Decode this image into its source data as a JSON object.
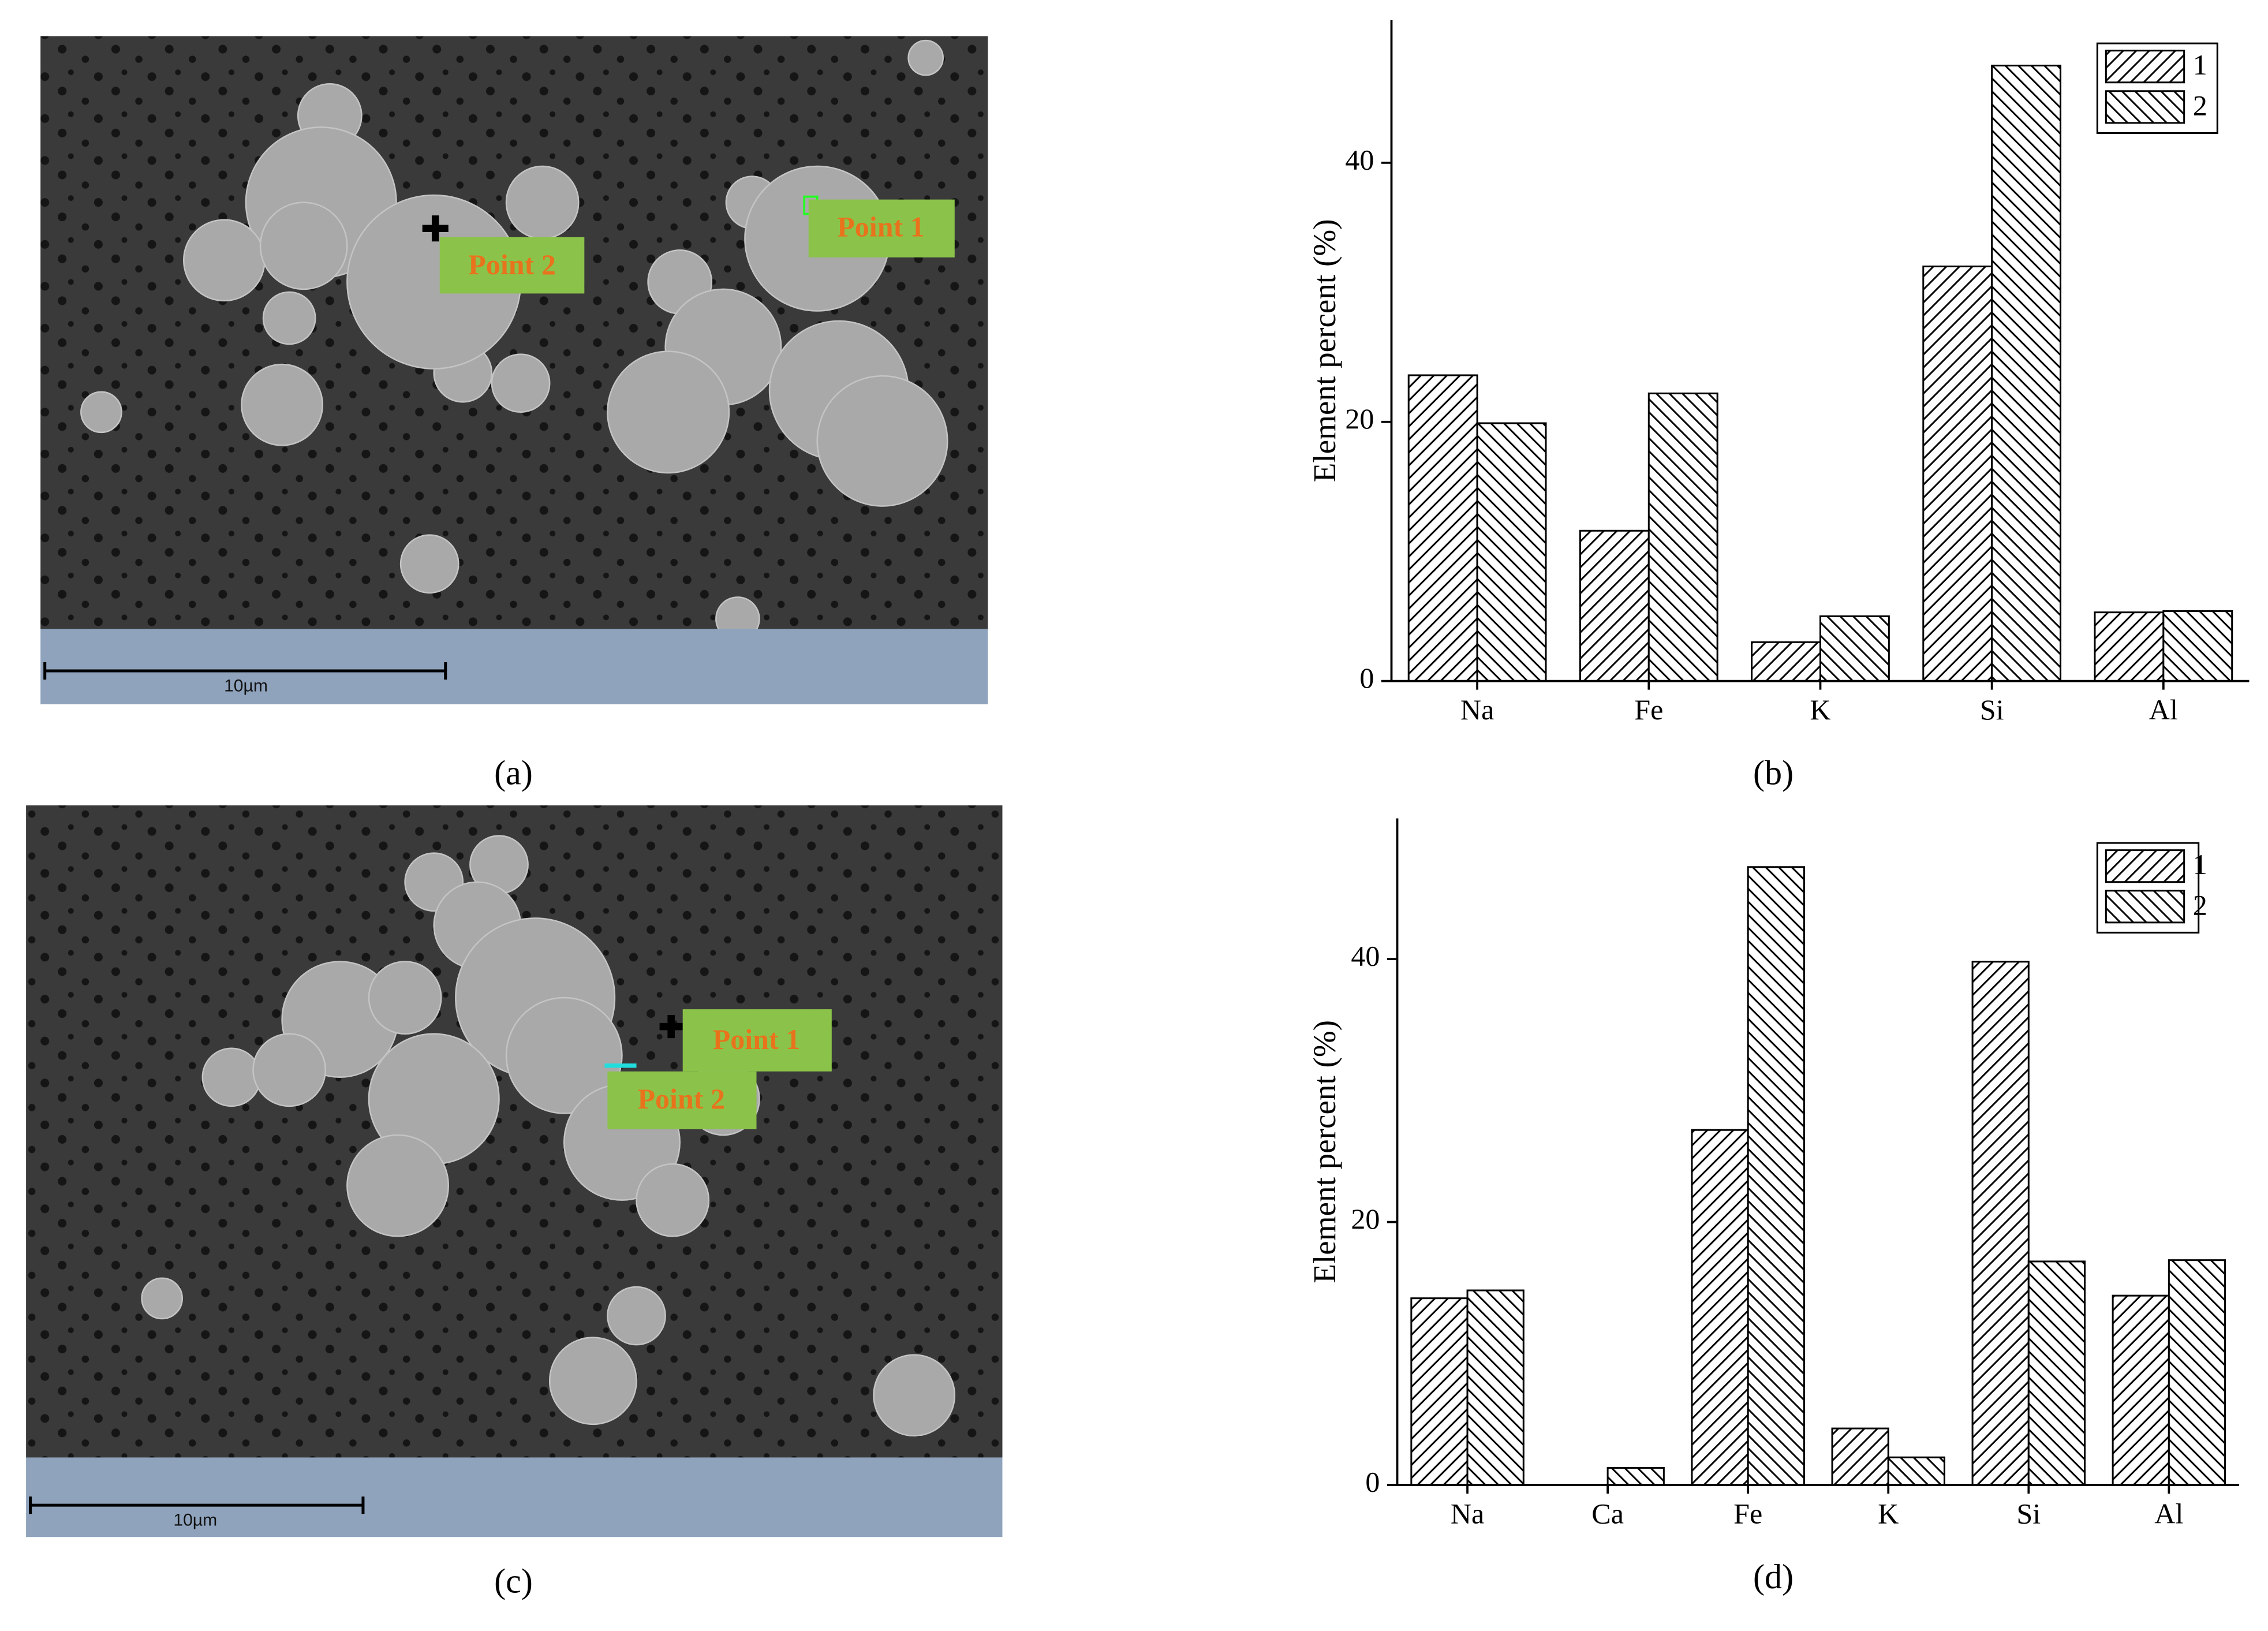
{
  "images": [
    {
      "label": "(a)",
      "points": [
        "Point 1",
        "Point 2"
      ],
      "scale_bar": "10µm"
    },
    {
      "label": "(c)",
      "points": [
        "Point 1",
        "Point 2"
      ],
      "scale_bar": "10µm"
    }
  ],
  "chart_data": [
    {
      "type": "bar",
      "panel_label": "(b)",
      "ylabel": "Element percent (%)",
      "categories": [
        "Na",
        "Fe",
        "K",
        "Si",
        "Al"
      ],
      "series": [
        {
          "name": "1",
          "color": "#000000",
          "hatch": "/",
          "values": [
            23.6,
            11.6,
            3.0,
            32.0,
            5.3
          ]
        },
        {
          "name": "2",
          "color": "#000000",
          "hatch": "\\",
          "values": [
            19.9,
            22.2,
            5.0,
            47.5,
            5.4
          ]
        }
      ],
      "ylim": [
        0,
        51
      ],
      "yticks": [
        0,
        20,
        40
      ],
      "legend": "upper right"
    },
    {
      "type": "bar",
      "panel_label": "(d)",
      "ylabel": "Element percent (%)",
      "categories": [
        "Na",
        "Ca",
        "Fe",
        "K",
        "Si",
        "Al"
      ],
      "series": [
        {
          "name": "1",
          "color": "#000000",
          "hatch": "/",
          "values": [
            14.2,
            0,
            27.0,
            4.3,
            39.8,
            14.4
          ]
        },
        {
          "name": "2",
          "color": "#000000",
          "hatch": "\\",
          "values": [
            14.8,
            1.3,
            47.0,
            2.1,
            17.0,
            17.1
          ]
        }
      ],
      "ylim": [
        0,
        50.7
      ],
      "yticks": [
        0,
        20,
        40
      ],
      "legend": "upper right"
    }
  ]
}
